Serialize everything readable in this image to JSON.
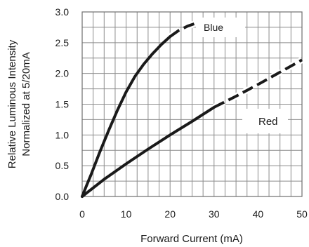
{
  "chart_data": {
    "type": "line",
    "xlabel": "Forward Current (mA)",
    "ylabel": [
      "Relative Luminous Intensity",
      "Normalized at 5/20mA"
    ],
    "xlim": [
      0,
      50
    ],
    "ylim": [
      0,
      3.0
    ],
    "x_ticks": [
      "0",
      "10",
      "20",
      "30",
      "40",
      "50"
    ],
    "y_ticks": [
      "0.0",
      "0.5",
      "1.0",
      "1.5",
      "2.0",
      "2.5",
      "3.0"
    ],
    "grid": true,
    "grid_x_step": 2.5,
    "grid_y_step": 0.25,
    "series": [
      {
        "name": "Blue",
        "color": "#1a1a1a",
        "solid": {
          "x": [
            0,
            1,
            2,
            4,
            6,
            8,
            10,
            12,
            14,
            16,
            18,
            20
          ],
          "y": [
            0,
            0.18,
            0.35,
            0.72,
            1.07,
            1.4,
            1.7,
            1.95,
            2.15,
            2.32,
            2.47,
            2.6
          ]
        },
        "dashed": {
          "x": [
            20,
            22,
            24,
            26
          ],
          "y": [
            2.6,
            2.7,
            2.77,
            2.82
          ]
        }
      },
      {
        "name": "Red",
        "color": "#1a1a1a",
        "solid": {
          "x": [
            0,
            5,
            10,
            15,
            20,
            25,
            30
          ],
          "y": [
            0,
            0.28,
            0.53,
            0.77,
            1.0,
            1.22,
            1.45
          ]
        },
        "dashed": {
          "x": [
            30,
            35,
            40,
            45,
            50
          ],
          "y": [
            1.45,
            1.63,
            1.82,
            2.02,
            2.22
          ]
        }
      }
    ]
  }
}
